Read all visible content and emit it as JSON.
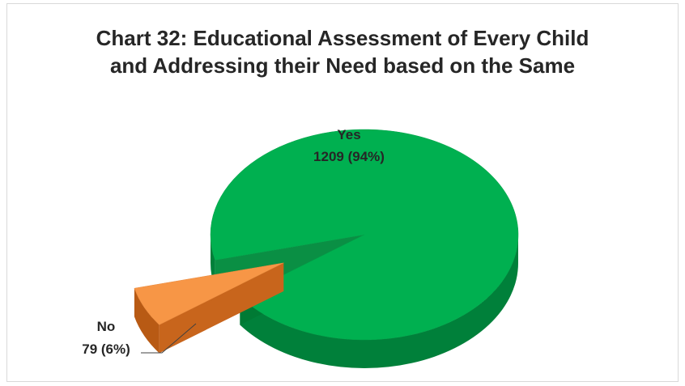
{
  "chart_data": {
    "type": "pie",
    "title_lines": [
      "Chart 32: Educational Assessment of Every Child",
      "and Addressing their Need based on the Same"
    ],
    "categories": [
      "Yes",
      "No"
    ],
    "values": [
      1209,
      79
    ],
    "percentages": [
      "94%",
      "6%"
    ],
    "data_labels": [
      {
        "name": "Yes",
        "value": "1209 (94%)"
      },
      {
        "name": "No",
        "value": "79 (6%)"
      }
    ],
    "colors": [
      "#00b050",
      "#f79646"
    ],
    "side_colors": [
      "#00803a",
      "#c8651c"
    ],
    "exploded": [
      "No"
    ],
    "style": "3d-exploded"
  }
}
